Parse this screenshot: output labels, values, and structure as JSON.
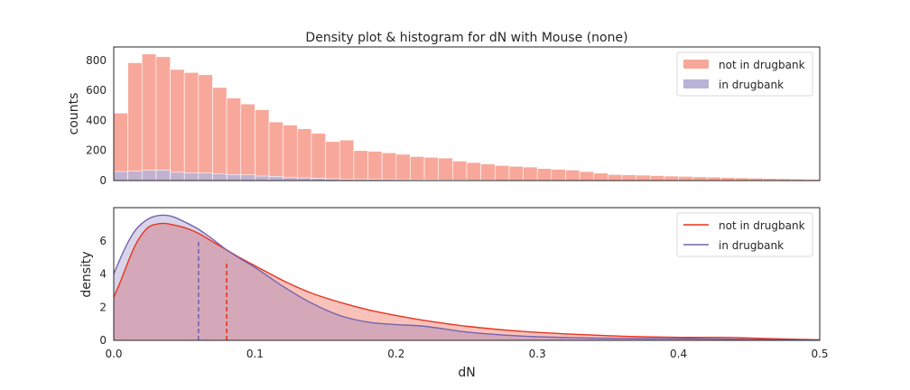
{
  "colors": {
    "not_in_fill": "#f8a89a",
    "in_fill": "#b9b3d8",
    "not_in_line": "#e8341e",
    "in_line": "#7564b0",
    "axes": "#262626"
  },
  "chart_data": [
    {
      "type": "bar",
      "title": "Density plot & histogram for dN with Mouse (none)",
      "ylabel": "counts",
      "xlabel": "",
      "xlim": [
        0,
        0.5
      ],
      "ylim": [
        0,
        890
      ],
      "yticks": [
        "0",
        "200",
        "400",
        "600",
        "800"
      ],
      "grid": false,
      "legend_placement": "top-right",
      "bin_width": 0.01,
      "x_start": 0.0,
      "series": [
        {
          "name": "not in drugbank",
          "values": [
            450,
            785,
            843,
            825,
            740,
            720,
            705,
            620,
            550,
            510,
            472,
            390,
            370,
            345,
            315,
            260,
            270,
            200,
            195,
            185,
            175,
            160,
            155,
            150,
            130,
            120,
            110,
            100,
            95,
            90,
            80,
            75,
            70,
            60,
            50,
            40,
            38,
            36,
            33,
            30,
            28,
            25,
            23,
            20,
            18,
            16,
            14,
            12,
            10,
            8
          ]
        },
        {
          "name": "in drugbank",
          "values": [
            60,
            62,
            68,
            70,
            55,
            52,
            50,
            45,
            40,
            38,
            30,
            28,
            20,
            18,
            15,
            12,
            10,
            9,
            8,
            7,
            6,
            5,
            5,
            4,
            4,
            3,
            3,
            2,
            2,
            2,
            2,
            2,
            1,
            1,
            1,
            1,
            1,
            1,
            1,
            1,
            1,
            1,
            1,
            1,
            1,
            1,
            1,
            1,
            1,
            1
          ]
        }
      ]
    },
    {
      "type": "area",
      "title": "",
      "xlabel": "dN",
      "ylabel": "density",
      "xlim": [
        0,
        0.5
      ],
      "ylim": [
        0,
        8
      ],
      "xticks": [
        "0.0",
        "0.1",
        "0.2",
        "0.3",
        "0.4",
        "0.5"
      ],
      "yticks": [
        "0",
        "2",
        "4",
        "6"
      ],
      "grid": false,
      "legend_placement": "top-right",
      "series": [
        {
          "name": "not in drugbank",
          "x": [
            0.0,
            0.005,
            0.01,
            0.015,
            0.02,
            0.025,
            0.03,
            0.035,
            0.04,
            0.05,
            0.06,
            0.07,
            0.08,
            0.09,
            0.1,
            0.12,
            0.14,
            0.16,
            0.18,
            0.2,
            0.22,
            0.25,
            0.28,
            0.3,
            0.33,
            0.36,
            0.4,
            0.43,
            0.45,
            0.48,
            0.5
          ],
          "y": [
            2.6,
            3.6,
            4.7,
            5.7,
            6.4,
            6.85,
            7.0,
            7.05,
            7.0,
            6.8,
            6.45,
            5.95,
            5.45,
            4.95,
            4.5,
            3.6,
            2.85,
            2.3,
            1.85,
            1.5,
            1.2,
            0.85,
            0.6,
            0.48,
            0.35,
            0.25,
            0.18,
            0.18,
            0.14,
            0.07,
            0.03
          ]
        },
        {
          "name": "in drugbank",
          "x": [
            0.0,
            0.005,
            0.01,
            0.015,
            0.02,
            0.025,
            0.03,
            0.035,
            0.04,
            0.045,
            0.05,
            0.06,
            0.07,
            0.08,
            0.09,
            0.1,
            0.12,
            0.14,
            0.16,
            0.18,
            0.2,
            0.22,
            0.25,
            0.28,
            0.3,
            0.33,
            0.36,
            0.4,
            0.43,
            0.45,
            0.48,
            0.5
          ],
          "y": [
            4.0,
            5.0,
            5.9,
            6.6,
            7.05,
            7.35,
            7.5,
            7.55,
            7.5,
            7.35,
            7.15,
            6.7,
            6.1,
            5.45,
            4.9,
            4.4,
            3.25,
            2.25,
            1.5,
            1.1,
            0.95,
            0.85,
            0.5,
            0.3,
            0.22,
            0.15,
            0.12,
            0.1,
            0.08,
            0.05,
            0.03,
            0.02
          ]
        }
      ],
      "means": [
        {
          "name": "not in drugbank",
          "x": 0.08,
          "y": 4.8
        },
        {
          "name": "in drugbank",
          "x": 0.06,
          "y": 5.95
        }
      ]
    }
  ]
}
